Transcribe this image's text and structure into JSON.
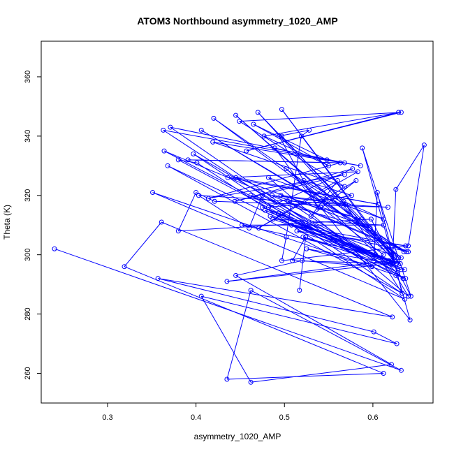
{
  "chart_data": {
    "type": "line",
    "title": "ATOM3 Northbound asymmetry_1020_AMP",
    "xlabel": "asymmetry_1020_AMP",
    "ylabel": "Theta (K)",
    "xlim": [
      0.225,
      0.668
    ],
    "ylim": [
      250,
      372
    ],
    "xticks": [
      0.3,
      0.4,
      0.5,
      0.6
    ],
    "yticks": [
      260,
      280,
      300,
      320,
      340,
      360
    ],
    "grid": false,
    "legend": "none",
    "color": "#0000ff",
    "marker": "open-circle",
    "series": [
      {
        "x": [
          0.24,
          0.632,
          0.462,
          0.435,
          0.612,
          0.319,
          0.361,
          0.622,
          0.357,
          0.601,
          0.627,
          0.406,
          0.462,
          0.621,
          0.445,
          0.52,
          0.599,
          0.525,
          0.62,
          0.435,
          0.618,
          0.475,
          0.621,
          0.623,
          0.475,
          0.46,
          0.403,
          0.617,
          0.421,
          0.4,
          0.38,
          0.598,
          0.643,
          0.588,
          0.642,
          0.541,
          0.612,
          0.601,
          0.605,
          0.633,
          0.567,
          0.612,
          0.482,
          0.64,
          0.626,
          0.38,
          0.401,
          0.636,
          0.351,
          0.637,
          0.368,
          0.633,
          0.397,
          0.628,
          0.364,
          0.638,
          0.406,
          0.635,
          0.42,
          0.632,
          0.445,
          0.629,
          0.47,
          0.627,
          0.497,
          0.624,
          0.497,
          0.631,
          0.502,
          0.634,
          0.504,
          0.64,
          0.508,
          0.637,
          0.514,
          0.631,
          0.521,
          0.632,
          0.493,
          0.636,
          0.484,
          0.626,
          0.478,
          0.622,
          0.487,
          0.612,
          0.452,
          0.603,
          0.462,
          0.597,
          0.445,
          0.606,
          0.436,
          0.583,
          0.471,
          0.56,
          0.53,
          0.581,
          0.541,
          0.576,
          0.522,
          0.569,
          0.486,
          0.587,
          0.496,
          0.547,
          0.482,
          0.577,
          0.444,
          0.568,
          0.414,
          0.563,
          0.391,
          0.568,
          0.371,
          0.599,
          0.363,
          0.586,
          0.419,
          0.568,
          0.449,
          0.632,
          0.457,
          0.629,
          0.477,
          0.55,
          0.465,
          0.548,
          0.489,
          0.538,
          0.494,
          0.528,
          0.519,
          0.502,
          0.497,
          0.64,
          0.658,
          0.626,
          0.622,
          0.509,
          0.524,
          0.517
        ],
        "y": [
          302.0,
          261.0,
          288.0,
          258.0,
          260.0,
          296.0,
          311.0,
          279.0,
          292.0,
          274.0,
          270.0,
          286.0,
          257.0,
          263.0,
          293.0,
          298.0,
          296.0,
          302.0,
          297.0,
          291.0,
          298.0,
          316.0,
          300.0,
          297.0,
          320.0,
          309.0,
          320.0,
          316.0,
          318.0,
          321.0,
          308.0,
          312.0,
          286.0,
          336.0,
          278.0,
          316.0,
          300.0,
          298.0,
          321.0,
          287.0,
          318.0,
          312.0,
          326.0,
          286.0,
          293.0,
          332.0,
          331.0,
          285.0,
          321.0,
          292.0,
          330.0,
          287.0,
          334.0,
          294.0,
          335.0,
          301.0,
          342.0,
          301.0,
          346.0,
          299.0,
          347.0,
          299.0,
          348.0,
          297.0,
          349.0,
          299.0,
          340.0,
          297.0,
          329.0,
          292.0,
          318.0,
          301.0,
          310.0,
          303.0,
          308.0,
          297.0,
          306.0,
          295.0,
          314.0,
          295.0,
          313.0,
          297.0,
          315.0,
          298.0,
          312.0,
          310.0,
          310.0,
          300.0,
          320.0,
          309.0,
          326.0,
          317.0,
          326.0,
          328.0,
          309.0,
          325.0,
          313.0,
          325.0,
          318.0,
          320.0,
          325.0,
          317.0,
          320.0,
          312.0,
          320.0,
          318.0,
          316.0,
          329.0,
          318.0,
          327.0,
          319.0,
          331.0,
          332.0,
          331.0,
          343.0,
          296.0,
          342.0,
          330.0,
          338.0,
          323.0,
          345.0,
          348.0,
          335.0,
          348.0,
          340.0,
          330.0,
          344.0,
          332.0,
          336.0,
          316.0,
          340.0,
          342.0,
          340.0,
          306.0,
          298.0,
          303.0,
          337.0,
          322.0,
          297.0,
          298.0,
          306.0,
          288.0
        ]
      }
    ]
  }
}
